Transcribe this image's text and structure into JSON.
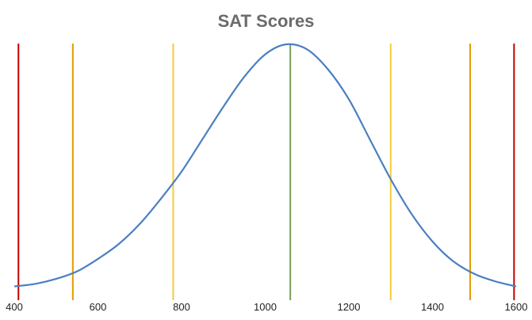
{
  "chart_data": {
    "type": "line",
    "title": "SAT Scores",
    "xlabel": "",
    "ylabel": "",
    "xlim": [
      400,
      1600
    ],
    "x_ticks": [
      400,
      600,
      800,
      1000,
      1200,
      1400,
      1600
    ],
    "y_axis_visible": false,
    "grid": false,
    "legend": "none",
    "series": [
      {
        "color": "#4a7fc1",
        "x": [
          400,
          450,
          500,
          550,
          600,
          650,
          700,
          750,
          800,
          850,
          900,
          950,
          1000,
          1050,
          1100,
          1150,
          1200,
          1250,
          1300,
          1350,
          1400,
          1450,
          1500,
          1550,
          1600
        ],
        "y": [
          0.03,
          0.04,
          0.06,
          0.09,
          0.14,
          0.2,
          0.28,
          0.38,
          0.49,
          0.62,
          0.75,
          0.87,
          0.96,
          1.0,
          0.98,
          0.9,
          0.78,
          0.62,
          0.46,
          0.32,
          0.21,
          0.13,
          0.08,
          0.05,
          0.03
        ]
      }
    ],
    "vertical_lines": [
      {
        "x": 410,
        "color": "#c00000"
      },
      {
        "x": 540,
        "color": "#e69a00"
      },
      {
        "x": 780,
        "color": "#f5cc3a"
      },
      {
        "x": 1060,
        "color": "#78a05a"
      },
      {
        "x": 1300,
        "color": "#f5cc3a"
      },
      {
        "x": 1490,
        "color": "#e69a00"
      },
      {
        "x": 1595,
        "color": "#c00000"
      }
    ]
  }
}
